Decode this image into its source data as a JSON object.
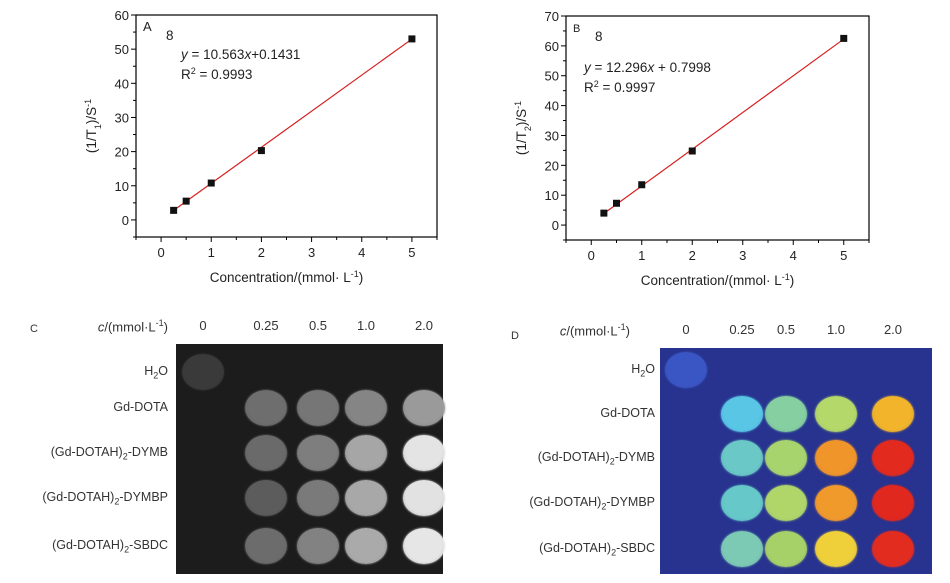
{
  "chart_data": [
    {
      "id": "A",
      "type": "scatter",
      "panel_label": "A",
      "annotation_number": "8",
      "fit_equation": "y = 10.563x+0.1431",
      "fit_equation_parts": {
        "y": "y",
        "eq": " = 10.563",
        "x": "x",
        "rest": "+0.1431"
      },
      "r_squared_label": "R",
      "r_squared_value": " = 0.9993",
      "slope": 10.563,
      "intercept": 0.1431,
      "x": [
        0.25,
        0.5,
        1,
        2,
        5
      ],
      "y": [
        2.8,
        5.5,
        10.8,
        20.3,
        53.0
      ],
      "xlabel": "Concentration/(mmol· L",
      "xlabel_sup": "-1",
      "xlabel_end": ")",
      "ylabel_pre": "(1/T",
      "ylabel_sub": "1",
      "ylabel_post": ")/S",
      "ylabel_sup": "-1",
      "xlim": [
        -0.5,
        5.5
      ],
      "ylim": [
        -5,
        60
      ],
      "xticks": [
        0,
        1,
        2,
        3,
        4,
        5
      ],
      "yticks": [
        0,
        10,
        20,
        30,
        40,
        50,
        60
      ],
      "marker_color": "#111111",
      "line_color": "#d62020",
      "grid": false
    },
    {
      "id": "B",
      "type": "scatter",
      "panel_label": "B",
      "annotation_number": "8",
      "fit_equation": "y = 12.296x + 0.7998",
      "fit_equation_parts": {
        "y": "y",
        "eq": " = 12.296",
        "x": "x",
        "rest": " + 0.7998"
      },
      "r_squared_label": "R",
      "r_squared_value": " = 0.9997",
      "slope": 12.296,
      "intercept": 0.7998,
      "x": [
        0.25,
        0.5,
        1,
        2,
        5
      ],
      "y": [
        4.0,
        7.3,
        13.5,
        24.8,
        62.5
      ],
      "xlabel": "Concentration/(mmol· L",
      "xlabel_sup": "-1",
      "xlabel_end": ")",
      "ylabel_pre": "(1/T",
      "ylabel_sub": "2",
      "ylabel_post": ")/S",
      "ylabel_sup": "-1",
      "xlim": [
        -0.5,
        5.5
      ],
      "ylim": [
        -5,
        70
      ],
      "xticks": [
        0,
        1,
        2,
        3,
        4,
        5
      ],
      "yticks": [
        0,
        10,
        20,
        30,
        40,
        50,
        60,
        70
      ],
      "marker_color": "#111111",
      "line_color": "#d62020",
      "grid": false
    }
  ],
  "plates": [
    {
      "id": "C",
      "panel_label": "C",
      "colormap": "grayscale",
      "background": "#1c1c1c",
      "header_prefix": "c",
      "header_unit": "/(mmol·L",
      "header_sup": "-1",
      "header_end": ")",
      "concentrations": [
        "0",
        "0.25",
        "0.5",
        "1.0",
        "2.0"
      ],
      "rows": [
        {
          "name": "H",
          "sub": "2",
          "suffix": "O",
          "wells": [
            "#3a3a3a",
            null,
            null,
            null,
            null
          ]
        },
        {
          "name": "Gd-DOTA",
          "sub": "",
          "suffix": "",
          "wells": [
            null,
            "#6e6e6e",
            "#767676",
            "#858585",
            "#9a9a9a"
          ]
        },
        {
          "name": "(Gd-DOTAH)",
          "sub": "2",
          "suffix": "-DYMB",
          "wells": [
            null,
            "#6a6a6a",
            "#7e7e7e",
            "#a6a6a6",
            "#e4e4e4"
          ]
        },
        {
          "name": "(Gd-DOTAH)",
          "sub": "2",
          "suffix": "-DYMBP",
          "wells": [
            null,
            "#5c5c5c",
            "#7a7a7a",
            "#a8a8a8",
            "#e2e2e2"
          ]
        },
        {
          "name": "(Gd-DOTAH)",
          "sub": "2",
          "suffix": "-SBDC",
          "wells": [
            null,
            "#6c6c6c",
            "#828282",
            "#aaaaaa",
            "#e6e6e6"
          ]
        }
      ]
    },
    {
      "id": "D",
      "panel_label": "D",
      "colormap": "jet",
      "background": "#27338f",
      "header_prefix": "c",
      "header_unit": "/(mmol·L",
      "header_sup": "-1",
      "header_end": ")",
      "concentrations": [
        "0",
        "0.25",
        "0.5",
        "1.0",
        "2.0"
      ],
      "rows": [
        {
          "name": "H",
          "sub": "2",
          "suffix": "O",
          "wells": [
            "#3a56c4",
            null,
            null,
            null,
            null
          ]
        },
        {
          "name": "Gd-DOTA",
          "sub": "",
          "suffix": "",
          "wells": [
            null,
            "#59c6e6",
            "#85cfa0",
            "#b5d86a",
            "#f2b42a"
          ]
        },
        {
          "name": "(Gd-DOTAH)",
          "sub": "2",
          "suffix": "-DYMB",
          "wells": [
            null,
            "#6ac8c6",
            "#a8d46e",
            "#f0952a",
            "#e22a1e"
          ]
        },
        {
          "name": "(Gd-DOTAH)",
          "sub": "2",
          "suffix": "-DYMBP",
          "wells": [
            null,
            "#66c8c8",
            "#b0d66a",
            "#f19a2c",
            "#e0281e"
          ]
        },
        {
          "name": "(Gd-DOTAH)",
          "sub": "2",
          "suffix": "-SBDC",
          "wells": [
            null,
            "#7ccab4",
            "#a6d168",
            "#f0d03a",
            "#e22c20"
          ]
        }
      ]
    }
  ]
}
